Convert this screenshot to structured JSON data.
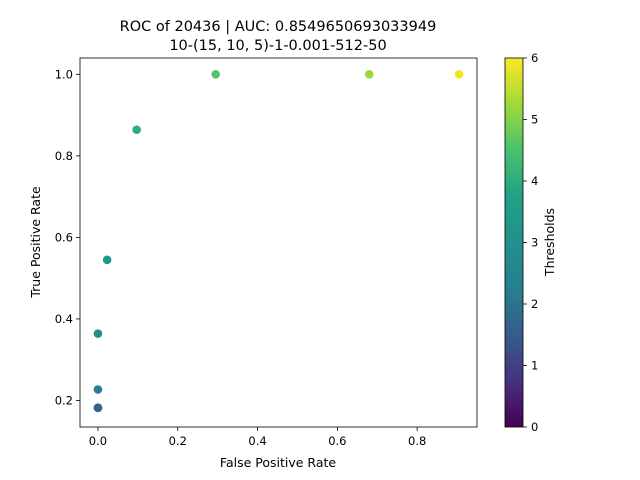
{
  "chart_data": {
    "type": "scatter",
    "title_lines": [
      "ROC of 20436 | AUC: 0.8549650693033949",
      "10-(15, 10, 5)-1-0.001-512-50"
    ],
    "xlabel": "False Positive Rate",
    "ylabel": "True Positive Rate",
    "xlim": [
      -0.045,
      0.95
    ],
    "ylim": [
      0.135,
      1.04
    ],
    "x_ticks": [
      "0.0",
      "0.2",
      "0.4",
      "0.6",
      "0.8"
    ],
    "x_tick_values": [
      0.0,
      0.2,
      0.4,
      0.6,
      0.8
    ],
    "y_ticks": [
      "0.2",
      "0.4",
      "0.6",
      "0.8",
      "1.0"
    ],
    "y_tick_values": [
      0.2,
      0.4,
      0.6,
      0.8,
      1.0
    ],
    "grid": false,
    "points": [
      {
        "x": 0.0,
        "y": 0.182,
        "threshold": 1.9
      },
      {
        "x": 0.0,
        "y": 0.182,
        "threshold": 1.6
      },
      {
        "x": 0.0,
        "y": 0.227,
        "threshold": 2.2
      },
      {
        "x": 0.0,
        "y": 0.364,
        "threshold": 2.8
      },
      {
        "x": 0.023,
        "y": 0.545,
        "threshold": 3.3
      },
      {
        "x": 0.097,
        "y": 0.864,
        "threshold": 4.0
      },
      {
        "x": 0.295,
        "y": 1.0,
        "threshold": 4.6
      },
      {
        "x": 0.68,
        "y": 1.0,
        "threshold": 5.2
      },
      {
        "x": 0.905,
        "y": 1.0,
        "threshold": 5.9
      }
    ],
    "colorbar": {
      "label": "Thresholds",
      "colormap": "viridis",
      "range": [
        0,
        6
      ],
      "ticks": [
        "0",
        "1",
        "2",
        "3",
        "4",
        "5",
        "6"
      ],
      "tick_values": [
        0,
        1,
        2,
        3,
        4,
        5,
        6
      ]
    }
  }
}
